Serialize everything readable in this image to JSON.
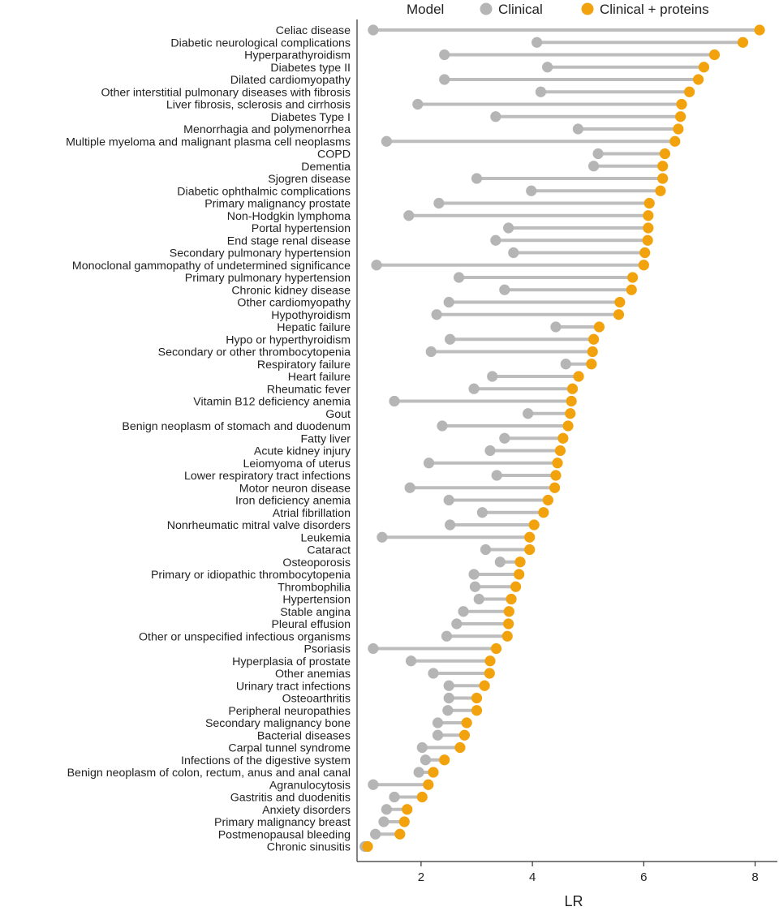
{
  "chart_data": {
    "type": "dumbbell",
    "xlabel": "LR",
    "ylabel": "",
    "xlim": [
      0.85,
      8.4
    ],
    "xticks": [
      2,
      4,
      6,
      8
    ],
    "legend": {
      "title": "Model",
      "position": "top",
      "entries": [
        {
          "name": "Clinical",
          "color": "#b5b5b5"
        },
        {
          "name": "Clinical + proteins",
          "color": "#f2a20d"
        }
      ]
    },
    "colors": {
      "clinical": "#b5b5b5",
      "proteins": "#f2a20d",
      "connector": "#bdbdbd",
      "axis": "#333333",
      "text": "#222222"
    },
    "categories": [
      "Celiac disease",
      "Diabetic neurological complications",
      "Hyperparathyroidism",
      "Diabetes type II",
      "Dilated cardiomyopathy",
      "Other interstitial pulmonary diseases with fibrosis",
      "Liver fibrosis, sclerosis and cirrhosis",
      "Diabetes Type I",
      "Menorrhagia and polymenorrhea",
      "Multiple myeloma and malignant plasma cell neoplasms",
      "COPD",
      "Dementia",
      "Sjogren disease",
      "Diabetic ophthalmic complications",
      "Primary malignancy prostate",
      "Non-Hodgkin lymphoma",
      "Portal hypertension",
      "End stage renal disease",
      "Secondary pulmonary hypertension",
      "Monoclonal gammopathy of undetermined significance",
      "Primary pulmonary hypertension",
      "Chronic kidney disease",
      "Other cardiomyopathy",
      "Hypothyroidism",
      "Hepatic failure",
      "Hypo or hyperthyroidism",
      "Secondary or other thrombocytopenia",
      "Respiratory failure",
      "Heart failure",
      "Rheumatic fever",
      "Vitamin B12 deficiency anemia",
      "Gout",
      "Benign neoplasm of stomach and duodenum",
      "Fatty liver",
      "Acute kidney injury",
      "Leiomyoma of uterus",
      "Lower respiratory tract infections",
      "Motor neuron disease",
      "Iron deficiency anemia",
      "Atrial fibrillation",
      "Nonrheumatic mitral valve disorders",
      "Leukemia",
      "Cataract",
      "Osteoporosis",
      "Primary or idiopathic thrombocytopenia",
      "Thrombophilia",
      "Hypertension",
      "Stable angina",
      "Pleural effusion",
      "Other or unspecified infectious organisms",
      "Psoriasis",
      "Hyperplasia of prostate",
      "Other anemias",
      "Urinary tract infections",
      "Osteoarthritis",
      "Peripheral neuropathies",
      "Secondary malignancy bone",
      "Bacterial diseases",
      "Carpal tunnel syndrome",
      "Infections of the digestive system",
      "Benign neoplasm of colon, rectum, anus and anal canal",
      "Agranulocytosis",
      "Gastritis and duodenitis",
      "Anxiety disorders",
      "Primary malignancy breast",
      "Postmenopausal bleeding",
      "Chronic sinusitis"
    ],
    "series": [
      {
        "name": "Clinical",
        "values": [
          1.14,
          4.08,
          2.42,
          4.27,
          2.42,
          4.15,
          1.94,
          3.34,
          4.82,
          1.38,
          5.18,
          5.1,
          3.0,
          3.98,
          2.32,
          1.78,
          3.57,
          3.34,
          3.66,
          1.2,
          2.68,
          3.5,
          2.5,
          2.28,
          4.42,
          2.52,
          2.18,
          4.6,
          3.28,
          2.95,
          1.52,
          3.92,
          2.38,
          3.5,
          3.24,
          2.14,
          3.36,
          1.8,
          2.5,
          3.1,
          2.52,
          1.3,
          3.16,
          3.42,
          2.95,
          2.97,
          3.04,
          2.76,
          2.64,
          2.46,
          1.14,
          1.82,
          2.22,
          2.5,
          2.5,
          2.48,
          2.3,
          2.3,
          2.02,
          2.08,
          1.96,
          1.14,
          1.52,
          1.38,
          1.33,
          1.18,
          0.99
        ]
      },
      {
        "name": "Clinical + proteins",
        "values": [
          8.08,
          7.78,
          7.27,
          7.08,
          6.98,
          6.82,
          6.68,
          6.66,
          6.62,
          6.56,
          6.38,
          6.34,
          6.34,
          6.3,
          6.1,
          6.08,
          6.08,
          6.07,
          6.02,
          6.0,
          5.8,
          5.78,
          5.57,
          5.55,
          5.2,
          5.1,
          5.08,
          5.06,
          4.83,
          4.72,
          4.7,
          4.68,
          4.64,
          4.55,
          4.5,
          4.45,
          4.42,
          4.4,
          4.28,
          4.2,
          4.03,
          3.95,
          3.95,
          3.78,
          3.76,
          3.7,
          3.62,
          3.58,
          3.57,
          3.55,
          3.35,
          3.24,
          3.23,
          3.14,
          3.0,
          3.0,
          2.82,
          2.78,
          2.7,
          2.42,
          2.22,
          2.13,
          2.02,
          1.75,
          1.7,
          1.62,
          1.04
        ]
      }
    ]
  }
}
